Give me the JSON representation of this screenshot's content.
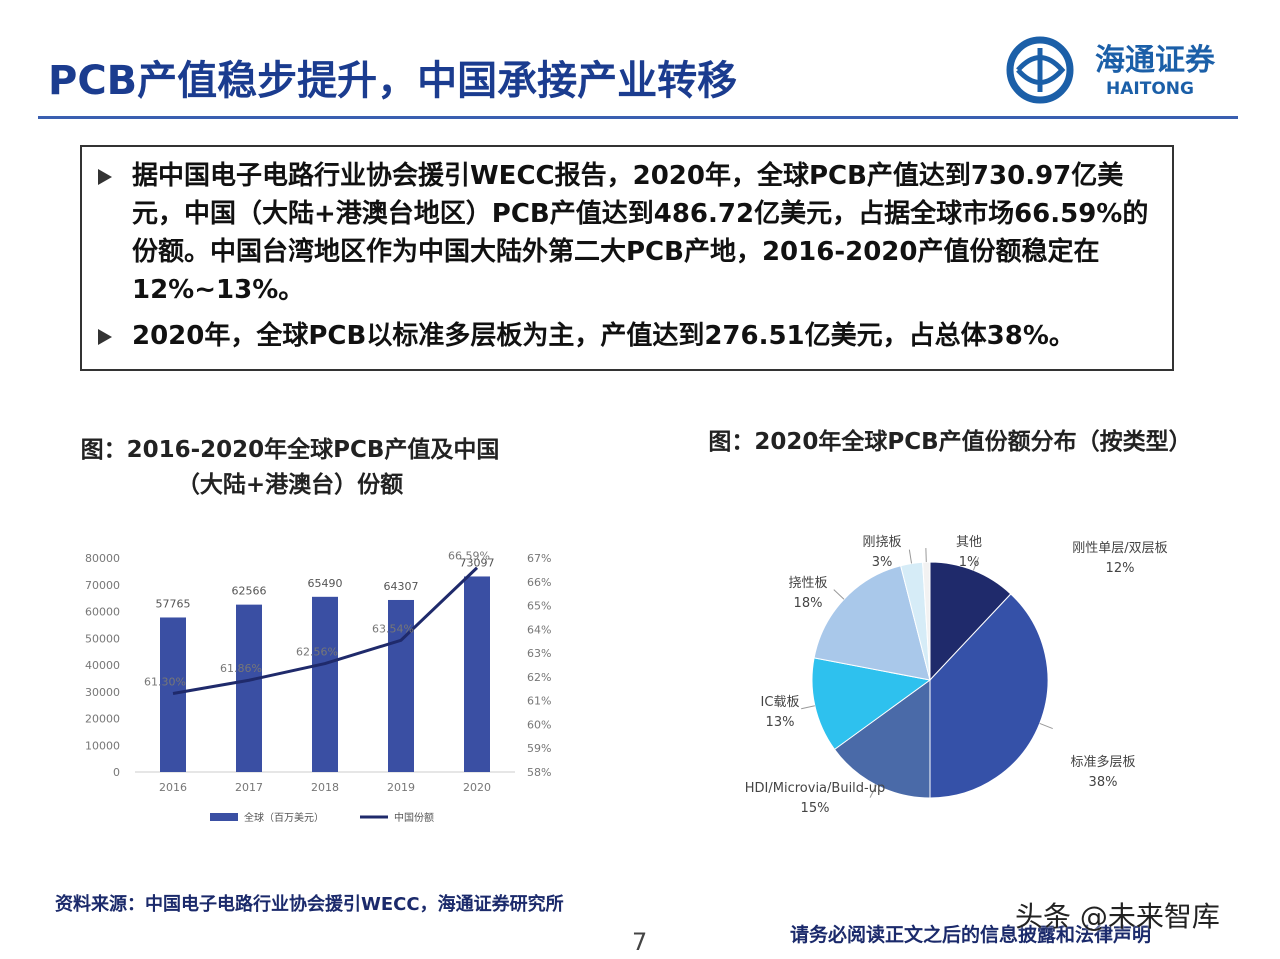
{
  "header": {
    "title": "PCB产值稳步提升，中国承接产业转移",
    "logo_name": "海通证券",
    "logo_en": "HAITONG"
  },
  "bullets": [
    "据中国电子电路行业协会援引WECC报告，2020年，全球PCB产值达到730.97亿美元，中国（大陆+港澳台地区）PCB产值达到486.72亿美元，占据全球市场66.59%的份额。中国台湾地区作为中国大陆外第二大PCB产地，2016-2020产值份额稳定在12%~13%。",
    "2020年，全球PCB以标准多层板为主，产值达到276.51亿美元，占总体38%。"
  ],
  "chart_data": [
    {
      "type": "bar",
      "title": "图：2016-2020年全球PCB产值及中国（大陆+港澳台）份额",
      "categories": [
        "2016",
        "2017",
        "2018",
        "2019",
        "2020"
      ],
      "series": [
        {
          "name": "全球（百万美元）",
          "color": "#3a4fa3",
          "values": [
            57765,
            62566,
            65490,
            64307,
            73097
          ]
        },
        {
          "name": "中国份额",
          "color": "#1f2a6b",
          "type": "line",
          "axis": "y2",
          "values": [
            61.3,
            61.86,
            62.56,
            63.54,
            66.59
          ],
          "value_labels": [
            "61.30%",
            "61.86%",
            "62.56%",
            "63.54%",
            "66.59%"
          ]
        }
      ],
      "ylim": [
        0,
        80000
      ],
      "yticks": [
        0,
        10000,
        20000,
        30000,
        40000,
        50000,
        60000,
        70000,
        80000
      ],
      "y2lim": [
        58,
        67
      ],
      "y2ticks": [
        {
          "value": 58,
          "label": "58%"
        },
        {
          "value": 59,
          "label": "59%"
        },
        {
          "value": 60,
          "label": "60%"
        },
        {
          "value": 61,
          "label": "61%"
        },
        {
          "value": 62,
          "label": "62%"
        },
        {
          "value": 63,
          "label": "63%"
        },
        {
          "value": 64,
          "label": "64%"
        },
        {
          "value": 65,
          "label": "65%"
        },
        {
          "value": 66,
          "label": "66%"
        },
        {
          "value": 67,
          "label": "67%"
        }
      ],
      "legend": "bottom"
    },
    {
      "type": "pie",
      "title": "图：2020年全球PCB产值份额分布（按类型）",
      "categories": [
        "刚性单层/双层板",
        "标准多层板",
        "HDI/Microvia/Build-up",
        "IC载板",
        "挠性板",
        "刚挠板",
        "其他"
      ],
      "values": [
        12,
        38,
        15,
        13,
        18,
        3,
        1
      ],
      "value_labels": [
        "12%",
        "38%",
        "15%",
        "13%",
        "18%",
        "3%",
        "1%"
      ],
      "colors": [
        "#1f2a6b",
        "#3551a8",
        "#4a6aa8",
        "#2ec1ee",
        "#a9c8ea",
        "#d6ecf7",
        "#f2f2f2"
      ]
    }
  ],
  "source": "资料来源：中国电子电路行业协会援引WECC，海通证券研究所",
  "page_number": "7",
  "disclaimer": "请务必阅读正文之后的信息披露和法律声明",
  "watermark": "头条 @未来智库"
}
